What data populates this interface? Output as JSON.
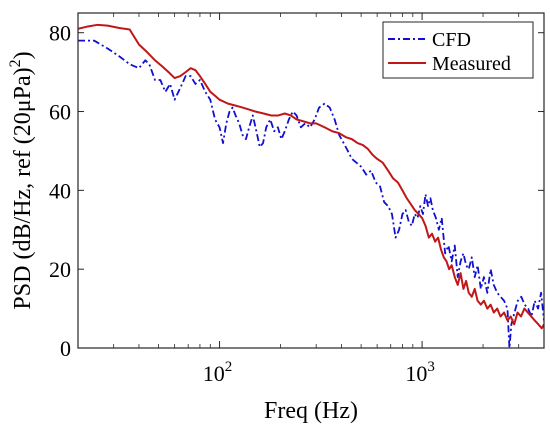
{
  "chart_data": {
    "type": "line",
    "title": "",
    "xlabel": "Freq (Hz)",
    "ylabel": "PSD (dB/Hz, ref (20μPa)",
    "ylabel_superscript": "2",
    "ylabel_close": ")",
    "xscale": "log",
    "xlim": [
      20,
      4000
    ],
    "ylim": [
      0,
      85
    ],
    "x_ticks": [
      {
        "value": 100,
        "base": "10",
        "exp": "2"
      },
      {
        "value": 1000,
        "base": "10",
        "exp": "3"
      }
    ],
    "y_ticks": [
      {
        "value": 0,
        "label": "0"
      },
      {
        "value": 20,
        "label": "20"
      },
      {
        "value": 40,
        "label": "40"
      },
      {
        "value": 60,
        "label": "60"
      },
      {
        "value": 80,
        "label": "80"
      }
    ],
    "grid": false,
    "legend_position": "top-right",
    "series": [
      {
        "name": "CFD",
        "color": "#1010d0",
        "style": "dash-dot",
        "points": [
          [
            20,
            78
          ],
          [
            24,
            78
          ],
          [
            28,
            76
          ],
          [
            32,
            74
          ],
          [
            36,
            72
          ],
          [
            40,
            71
          ],
          [
            43,
            73
          ],
          [
            45,
            72
          ],
          [
            48,
            68
          ],
          [
            51,
            68
          ],
          [
            54,
            65
          ],
          [
            57,
            67
          ],
          [
            60,
            63
          ],
          [
            64,
            66
          ],
          [
            68,
            69
          ],
          [
            72,
            69
          ],
          [
            76,
            67
          ],
          [
            80,
            68
          ],
          [
            85,
            65
          ],
          [
            90,
            63
          ],
          [
            95,
            58
          ],
          [
            100,
            56
          ],
          [
            104,
            52
          ],
          [
            108,
            57
          ],
          [
            112,
            60
          ],
          [
            116,
            61
          ],
          [
            120,
            59
          ],
          [
            125,
            57
          ],
          [
            130,
            54
          ],
          [
            135,
            53
          ],
          [
            140,
            56
          ],
          [
            146,
            59
          ],
          [
            152,
            55
          ],
          [
            158,
            51
          ],
          [
            164,
            52
          ],
          [
            170,
            56
          ],
          [
            178,
            58
          ],
          [
            186,
            55
          ],
          [
            194,
            56
          ],
          [
            202,
            53
          ],
          [
            210,
            55
          ],
          [
            220,
            58
          ],
          [
            230,
            60
          ],
          [
            240,
            59
          ],
          [
            252,
            56
          ],
          [
            265,
            57
          ],
          [
            280,
            56
          ],
          [
            295,
            58
          ],
          [
            310,
            61
          ],
          [
            330,
            62
          ],
          [
            350,
            61
          ],
          [
            370,
            58
          ],
          [
            390,
            54
          ],
          [
            410,
            52
          ],
          [
            430,
            50
          ],
          [
            450,
            48
          ],
          [
            475,
            47
          ],
          [
            500,
            46
          ],
          [
            530,
            44
          ],
          [
            560,
            45
          ],
          [
            590,
            42
          ],
          [
            620,
            41
          ],
          [
            650,
            37
          ],
          [
            680,
            36
          ],
          [
            710,
            34
          ],
          [
            740,
            28
          ],
          [
            770,
            30
          ],
          [
            800,
            34
          ],
          [
            830,
            35
          ],
          [
            860,
            32
          ],
          [
            890,
            31
          ],
          [
            920,
            34
          ],
          [
            950,
            33
          ],
          [
            980,
            36
          ],
          [
            1010,
            34
          ],
          [
            1040,
            39
          ],
          [
            1070,
            36
          ],
          [
            1100,
            38
          ],
          [
            1130,
            35
          ],
          [
            1170,
            33
          ],
          [
            1210,
            30
          ],
          [
            1250,
            33
          ],
          [
            1300,
            24
          ],
          [
            1350,
            26
          ],
          [
            1400,
            22
          ],
          [
            1450,
            26
          ],
          [
            1500,
            18
          ],
          [
            1550,
            22
          ],
          [
            1600,
            24
          ],
          [
            1650,
            21
          ],
          [
            1700,
            20
          ],
          [
            1760,
            23
          ],
          [
            1820,
            18
          ],
          [
            1880,
            21
          ],
          [
            1950,
            15
          ],
          [
            2020,
            18
          ],
          [
            2100,
            14
          ],
          [
            2180,
            20
          ],
          [
            2260,
            16
          ],
          [
            2350,
            14
          ],
          [
            2440,
            13
          ],
          [
            2540,
            12
          ],
          [
            2640,
            10
          ],
          [
            2700,
            0
          ],
          [
            2760,
            6
          ],
          [
            2860,
            9
          ],
          [
            2970,
            12
          ],
          [
            3090,
            13
          ],
          [
            3210,
            11
          ],
          [
            3340,
            10
          ],
          [
            3470,
            8
          ],
          [
            3600,
            12
          ],
          [
            3740,
            10
          ],
          [
            3870,
            14
          ],
          [
            4000,
            7
          ]
        ]
      },
      {
        "name": "Measured",
        "color": "#c01818",
        "style": "solid",
        "points": [
          [
            20,
            81
          ],
          [
            22,
            81.5
          ],
          [
            25,
            82
          ],
          [
            28,
            81.8
          ],
          [
            32,
            81.2
          ],
          [
            36,
            80.8
          ],
          [
            40,
            77
          ],
          [
            44,
            75
          ],
          [
            48,
            73
          ],
          [
            52,
            71.5
          ],
          [
            56,
            70
          ],
          [
            60,
            68.5
          ],
          [
            64,
            69
          ],
          [
            68,
            70
          ],
          [
            72,
            71
          ],
          [
            76,
            70.5
          ],
          [
            80,
            69
          ],
          [
            85,
            67
          ],
          [
            90,
            65
          ],
          [
            95,
            64
          ],
          [
            100,
            63
          ],
          [
            110,
            62
          ],
          [
            120,
            61.5
          ],
          [
            130,
            61
          ],
          [
            140,
            60.5
          ],
          [
            150,
            60
          ],
          [
            165,
            59.5
          ],
          [
            180,
            59
          ],
          [
            195,
            59
          ],
          [
            210,
            59.5
          ],
          [
            225,
            59
          ],
          [
            240,
            58
          ],
          [
            260,
            57.5
          ],
          [
            280,
            57
          ],
          [
            300,
            57
          ],
          [
            330,
            56
          ],
          [
            360,
            55
          ],
          [
            390,
            54.5
          ],
          [
            420,
            53.5
          ],
          [
            450,
            53
          ],
          [
            480,
            52
          ],
          [
            510,
            51.5
          ],
          [
            540,
            50.5
          ],
          [
            570,
            49
          ],
          [
            600,
            48
          ],
          [
            640,
            47
          ],
          [
            680,
            45
          ],
          [
            720,
            43
          ],
          [
            760,
            42
          ],
          [
            800,
            40
          ],
          [
            840,
            38
          ],
          [
            880,
            36.5
          ],
          [
            920,
            35
          ],
          [
            960,
            34
          ],
          [
            1000,
            33
          ],
          [
            1040,
            31
          ],
          [
            1080,
            28
          ],
          [
            1120,
            29
          ],
          [
            1160,
            27
          ],
          [
            1200,
            28
          ],
          [
            1240,
            25
          ],
          [
            1280,
            23
          ],
          [
            1320,
            22
          ],
          [
            1360,
            20
          ],
          [
            1400,
            21
          ],
          [
            1450,
            18
          ],
          [
            1500,
            16
          ],
          [
            1550,
            19
          ],
          [
            1600,
            15
          ],
          [
            1650,
            17
          ],
          [
            1700,
            14
          ],
          [
            1760,
            13
          ],
          [
            1820,
            15
          ],
          [
            1880,
            12
          ],
          [
            1950,
            11
          ],
          [
            2020,
            12
          ],
          [
            2100,
            10
          ],
          [
            2180,
            11
          ],
          [
            2260,
            9
          ],
          [
            2350,
            10
          ],
          [
            2440,
            8
          ],
          [
            2540,
            9
          ],
          [
            2640,
            7
          ],
          [
            2740,
            8
          ],
          [
            2850,
            6
          ],
          [
            2960,
            9
          ],
          [
            3080,
            8
          ],
          [
            3200,
            10
          ],
          [
            3330,
            9
          ],
          [
            3460,
            8
          ],
          [
            3600,
            7
          ],
          [
            3750,
            6
          ],
          [
            3900,
            5
          ],
          [
            4000,
            6
          ]
        ]
      }
    ]
  }
}
